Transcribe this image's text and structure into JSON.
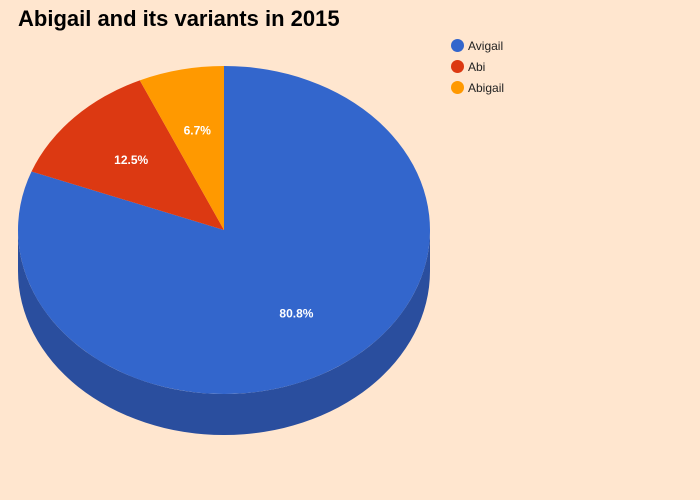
{
  "page": {
    "background": "#FFE6CF"
  },
  "chart_data": {
    "type": "pie",
    "title": "Abigail and its variants in 2015",
    "three_d": true,
    "legend_position": "top-right",
    "slices": [
      {
        "name": "Avigail",
        "percent": 80.8,
        "label": "80.8%",
        "color": "#3366CC",
        "side_color": "#2A4E9E"
      },
      {
        "name": "Abi",
        "percent": 12.5,
        "label": "12.5%",
        "color": "#DC3912",
        "side_color": "#A82B0E"
      },
      {
        "name": "Abigail",
        "percent": 6.7,
        "label": "6.7%",
        "color": "#FF9900",
        "side_color": "#C27400"
      }
    ]
  }
}
